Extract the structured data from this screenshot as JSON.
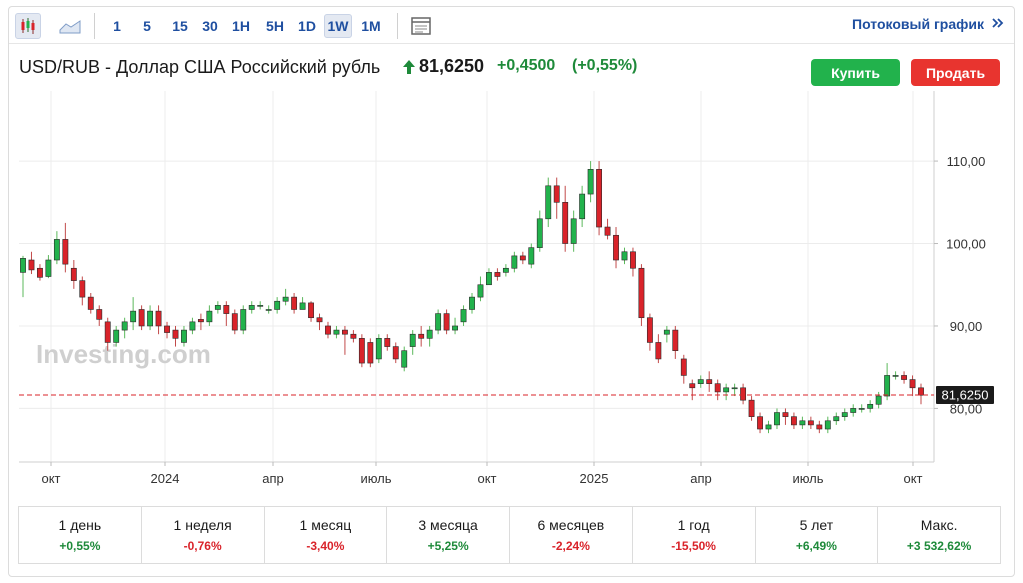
{
  "toolbar": {
    "icons": [
      "candlestick-chart-icon",
      "area-chart-icon",
      "chart-settings-icon"
    ],
    "intervals": [
      "1",
      "5",
      "15",
      "30",
      "1H",
      "5H",
      "1D",
      "1W",
      "1M"
    ],
    "active_interval": "1W",
    "stream_link": "Потоковый график",
    "stream_icon": "double-chevron-right-icon"
  },
  "quote": {
    "instrument": "USD/RUB - Доллар США Российский рубль",
    "price": "81,6250",
    "change": "+0,4500",
    "change_pct": "(+0,55%)",
    "direction_icon": "up-arrow-icon"
  },
  "actions": {
    "buy": "Купить",
    "sell": "Продать"
  },
  "colors": {
    "up": "#22b24c",
    "down": "#d9232a",
    "link": "#1f4fa0",
    "positive_text": "#1e8a3a",
    "negative_text": "#d9232a"
  },
  "chart_data": {
    "type": "candlestick",
    "x_tick_labels": [
      "окт",
      "2024",
      "апр",
      "июль",
      "окт",
      "2025",
      "апр",
      "июль",
      "окт"
    ],
    "y_tick_labels": [
      "80,00",
      "90,00",
      "100,00",
      "110,00"
    ],
    "y_ticks": [
      80,
      90,
      100,
      110
    ],
    "ylim": [
      73.5,
      118.5
    ],
    "last_price_label": "81,6250",
    "last_price": 81.625,
    "watermark": "Investing.com",
    "candles": [
      [
        96.5,
        98.2,
        93.5,
        98.5
      ],
      [
        98,
        96.8,
        96.3,
        99
      ],
      [
        97,
        95.9,
        95.5,
        97.5
      ],
      [
        96,
        98,
        95.8,
        98.6
      ],
      [
        98,
        100.5,
        97.5,
        101.5
      ],
      [
        100.5,
        97.5,
        96.5,
        102.5
      ],
      [
        97,
        95.5,
        94.5,
        98
      ],
      [
        95.5,
        93.5,
        92.5,
        96
      ],
      [
        93.5,
        92,
        91.5,
        94
      ],
      [
        92,
        90.8,
        90,
        92.5
      ],
      [
        90.5,
        88,
        87,
        91
      ],
      [
        88,
        89.5,
        87.5,
        90
      ],
      [
        89.5,
        90.5,
        88.5,
        91
      ],
      [
        90.5,
        91.8,
        89.5,
        93.5
      ],
      [
        92,
        90,
        89.5,
        92.5
      ],
      [
        90,
        91.8,
        89.5,
        92.5
      ],
      [
        91.8,
        90,
        89,
        92.5
      ],
      [
        90,
        89.2,
        88.5,
        90.5
      ],
      [
        89.5,
        88.5,
        87.5,
        90
      ],
      [
        88,
        89.5,
        87.5,
        90
      ],
      [
        89.5,
        90.5,
        89,
        91
      ],
      [
        90.8,
        90.5,
        89.5,
        91.5
      ],
      [
        90.5,
        91.8,
        90,
        92.5
      ],
      [
        92,
        92.5,
        91.5,
        93
      ],
      [
        92.5,
        91.5,
        90,
        93
      ],
      [
        91.5,
        89.5,
        89,
        92
      ],
      [
        89.5,
        92,
        89,
        92.5
      ],
      [
        92,
        92.5,
        91.5,
        93
      ],
      [
        92.5,
        92.5,
        92,
        93
      ],
      [
        92,
        92,
        91.5,
        92.5
      ],
      [
        92,
        93,
        91.5,
        93.5
      ],
      [
        93,
        93.5,
        92.5,
        94.5
      ],
      [
        93.5,
        92,
        91.5,
        94
      ],
      [
        92,
        92.8,
        92,
        93.5
      ],
      [
        92.8,
        91,
        90.5,
        93
      ],
      [
        91,
        90.5,
        89.5,
        91.5
      ],
      [
        90,
        89,
        88.5,
        90.5
      ],
      [
        89,
        89.5,
        88.5,
        90
      ],
      [
        89.5,
        89,
        86.5,
        90
      ],
      [
        89,
        88.5,
        88,
        89.5
      ],
      [
        88.5,
        85.5,
        85,
        89
      ],
      [
        88,
        85.5,
        85,
        88.5
      ],
      [
        86,
        88.5,
        85.5,
        89
      ],
      [
        88.5,
        87.5,
        87,
        89
      ],
      [
        87.5,
        86,
        85.5,
        88
      ],
      [
        85,
        87,
        84.5,
        87.5
      ],
      [
        87.5,
        89,
        86.5,
        89.5
      ],
      [
        89,
        88.5,
        87.5,
        90
      ],
      [
        88.5,
        89.5,
        87.5,
        90
      ],
      [
        89.5,
        91.5,
        89,
        92
      ],
      [
        91.5,
        89.5,
        89,
        92
      ],
      [
        89.5,
        90,
        89,
        91
      ],
      [
        90.5,
        92,
        90,
        92.5
      ],
      [
        92,
        93.5,
        91.5,
        94
      ],
      [
        93.5,
        95,
        93,
        96
      ],
      [
        95,
        96.5,
        95,
        97
      ],
      [
        96.5,
        96,
        95.5,
        97
      ],
      [
        96.5,
        97,
        96,
        97.5
      ],
      [
        97,
        98.5,
        96.5,
        99
      ],
      [
        98.5,
        98,
        97.5,
        99
      ],
      [
        97.5,
        99.5,
        97,
        100
      ],
      [
        99.5,
        103,
        99,
        104
      ],
      [
        103,
        107,
        102,
        108
      ],
      [
        107,
        105,
        103,
        108
      ],
      [
        105,
        100,
        99,
        107
      ],
      [
        100,
        103,
        99,
        104
      ],
      [
        103,
        106,
        102,
        107
      ],
      [
        106,
        109,
        105,
        110
      ],
      [
        109,
        102,
        101,
        110
      ],
      [
        102,
        101,
        100.5,
        103
      ],
      [
        101,
        98,
        97,
        102
      ],
      [
        98,
        99,
        97.5,
        99.5
      ],
      [
        99,
        97,
        96,
        99.5
      ],
      [
        97,
        91,
        90,
        97.5
      ],
      [
        91,
        88,
        87,
        91.5
      ],
      [
        88,
        86,
        85.5,
        89
      ],
      [
        89,
        89.5,
        88,
        90
      ],
      [
        89.5,
        87,
        86,
        90
      ],
      [
        86,
        84,
        83,
        86.5
      ],
      [
        83,
        82.5,
        81,
        83.5
      ],
      [
        83,
        83.5,
        82.5,
        84
      ],
      [
        83.5,
        83,
        82,
        84.5
      ],
      [
        83,
        82,
        81,
        83.5
      ],
      [
        82,
        82.5,
        81,
        83
      ],
      [
        82.5,
        82.5,
        81.5,
        83
      ],
      [
        82.5,
        81,
        80.5,
        83
      ],
      [
        81,
        79,
        78.5,
        81.5
      ],
      [
        79,
        77.5,
        77,
        79.5
      ],
      [
        77.5,
        78,
        77,
        78.5
      ],
      [
        78,
        79.5,
        77.5,
        80
      ],
      [
        79.5,
        79,
        78,
        80
      ],
      [
        79,
        78,
        77.5,
        79.5
      ],
      [
        78,
        78.5,
        77.5,
        79
      ],
      [
        78.5,
        78,
        77.5,
        79
      ],
      [
        78,
        77.5,
        77,
        78.5
      ],
      [
        77.5,
        78.5,
        77,
        79
      ],
      [
        78.5,
        79,
        78,
        79.5
      ],
      [
        79,
        79.5,
        78.5,
        80
      ],
      [
        79.5,
        80,
        79,
        80.5
      ],
      [
        80,
        80,
        79.5,
        80.5
      ],
      [
        80,
        80.5,
        79.5,
        81
      ],
      [
        80.5,
        81.5,
        80,
        82
      ],
      [
        81.5,
        84,
        81,
        85.5
      ],
      [
        84,
        84,
        83.5,
        84.5
      ],
      [
        84,
        83.5,
        83,
        84.5
      ],
      [
        83.5,
        82.5,
        81.5,
        84
      ],
      [
        82.5,
        81.6,
        80.5,
        83
      ]
    ]
  },
  "performance": [
    {
      "label": "1 день",
      "value": "+0,55%",
      "sign": "up"
    },
    {
      "label": "1 неделя",
      "value": "-0,76%",
      "sign": "down"
    },
    {
      "label": "1 месяц",
      "value": "-3,40%",
      "sign": "down"
    },
    {
      "label": "3 месяца",
      "value": "+5,25%",
      "sign": "up"
    },
    {
      "label": "6 месяцев",
      "value": "-2,24%",
      "sign": "down"
    },
    {
      "label": "1 год",
      "value": "-15,50%",
      "sign": "down"
    },
    {
      "label": "5 лет",
      "value": "+6,49%",
      "sign": "up"
    },
    {
      "label": "Макс.",
      "value": "+3 532,62%",
      "sign": "up"
    }
  ]
}
